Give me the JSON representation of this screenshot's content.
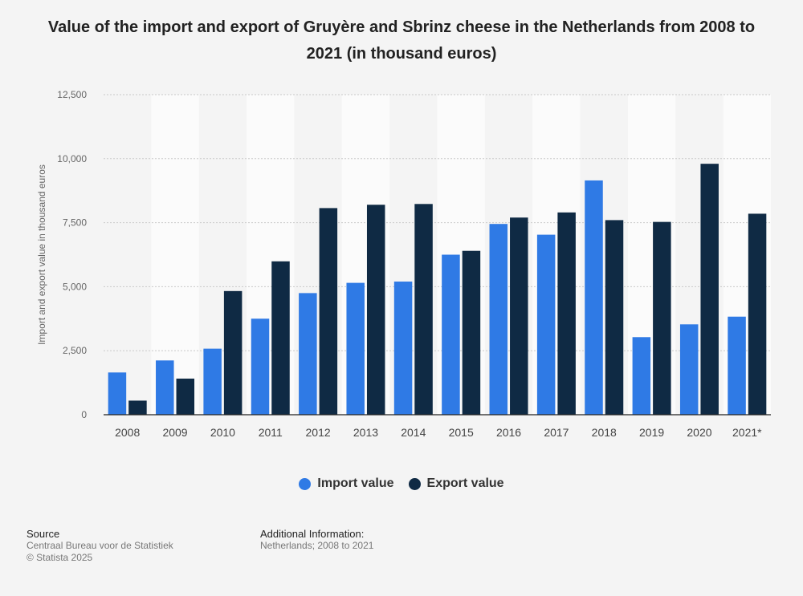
{
  "chart_data": {
    "type": "bar",
    "title": "Value of the import and export of Gruyère and Sbrinz cheese in the Netherlands from 2008 to 2021 (in thousand euros)",
    "ylabel": "Import and export value in thousand euros",
    "xlabel": "",
    "ylim": [
      0,
      12500
    ],
    "yticks": [
      0,
      2500,
      5000,
      7500,
      10000,
      12500
    ],
    "ytick_labels": [
      "0",
      "2,500",
      "5,000",
      "7,500",
      "10,000",
      "12,500"
    ],
    "categories": [
      "2008",
      "2009",
      "2010",
      "2011",
      "2012",
      "2013",
      "2014",
      "2015",
      "2016",
      "2017",
      "2018",
      "2019",
      "2020",
      "2021*"
    ],
    "series": [
      {
        "name": "Import value",
        "color": "#2f7ae5",
        "values": [
          1650,
          2120,
          2580,
          3750,
          4750,
          5150,
          5200,
          6250,
          7450,
          7030,
          9150,
          3030,
          3530,
          3830
        ]
      },
      {
        "name": "Export value",
        "color": "#0f2a44",
        "values": [
          550,
          1410,
          4830,
          5990,
          8070,
          8200,
          8230,
          6400,
          7700,
          7900,
          7600,
          7530,
          9800,
          7850
        ]
      }
    ],
    "grid": true,
    "legend_position": "bottom"
  },
  "source": {
    "heading": "Source",
    "lines": [
      "Centraal Bureau voor de Statistiek",
      "© Statista 2025"
    ]
  },
  "additional": {
    "heading": "Additional Information:",
    "text": "Netherlands; 2008 to 2021"
  }
}
